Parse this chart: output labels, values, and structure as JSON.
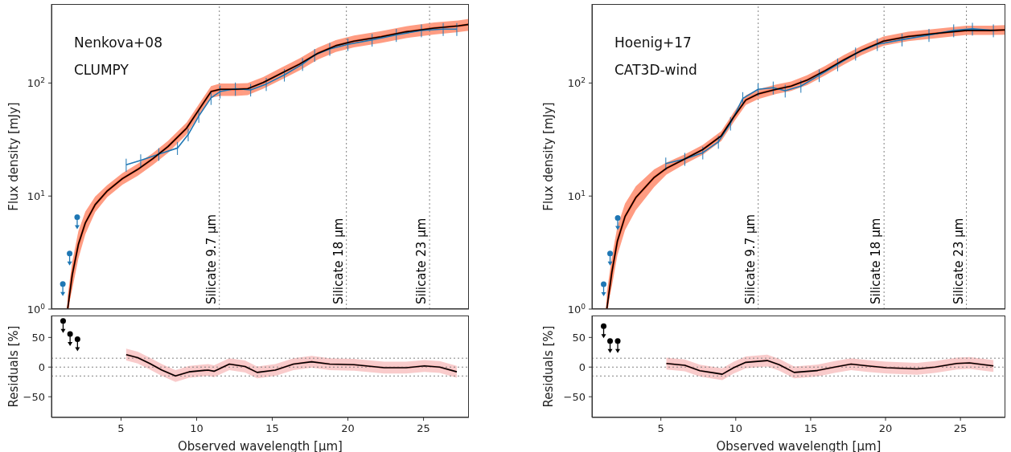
{
  "chart_data": [
    {
      "type": "line",
      "ylabel": "Flux density [mJy]",
      "annotations": [
        "Nenkova+08",
        "CLUMPY"
      ],
      "log": "y",
      "xlim": [
        0.4,
        28
      ],
      "xticks": [
        5,
        10,
        15,
        20,
        25
      ],
      "ylim": [
        1,
        500
      ],
      "yticks": [
        {
          "value": 1,
          "label": "10$^{0}$"
        },
        {
          "value": 10,
          "label": "10$^{1}$"
        },
        {
          "value": 100,
          "label": "10$^{2}$"
        }
      ],
      "tick_labels": "y",
      "ref_lines": [
        {
          "axis": "x",
          "value": 11.5,
          "label": "Silicate 9.7 µm",
          "color": "#808080",
          "line_style": "dotted"
        },
        {
          "axis": "x",
          "value": 19.9,
          "label": "Silicate 18 µm",
          "color": "#808080",
          "line_style": "dotted"
        },
        {
          "axis": "x",
          "value": 25.4,
          "label": "Silicate 23 µm",
          "color": "#808080",
          "line_style": "dotted"
        }
      ],
      "series": [
        {
          "color": "#ff4a1c",
          "x": [
            1.47,
            1.77,
            2.18,
            2.64,
            3.29,
            4.09,
            5.1,
            6.1,
            7.1,
            8.1,
            9.33,
            10.14,
            10.95,
            11.55,
            12.56,
            13.37,
            14.4,
            15.6,
            16.8,
            18.0,
            19.2,
            20.4,
            22.2,
            23.85,
            25.7,
            27.3,
            28.0
          ],
          "values": [
            1.0,
            2.0,
            3.74,
            5.8,
            8.4,
            11.1,
            14.3,
            17.2,
            21.4,
            27.4,
            39.8,
            57.8,
            84,
            88,
            88,
            89,
            101,
            122,
            147,
            183,
            214,
            235,
            257,
            284,
            306,
            320,
            330
          ],
          "lower": [
            1.0,
            1.5,
            2.8,
            4.6,
            7.2,
            9.8,
            12.6,
            15.1,
            18.8,
            24.1,
            35,
            51,
            74,
            77,
            77,
            78,
            89,
            107,
            129,
            161,
            188,
            207,
            226,
            250,
            269,
            282,
            290
          ],
          "upper": [
            1.3,
            2.6,
            4.9,
            7.3,
            9.9,
            12.5,
            16,
            19.3,
            24,
            30.7,
            44.6,
            64.7,
            94,
            99,
            99,
            100,
            113,
            137,
            165,
            205,
            240,
            263,
            288,
            318,
            343,
            358,
            370
          ]
        },
        {
          "color": "#1f77b4",
          "x": [
            5.34,
            6.3,
            7.5,
            8.73,
            9.44,
            10.14,
            10.95,
            11.55,
            12.56,
            13.57,
            14.6,
            15.8,
            17.0,
            17.8,
            18.8,
            20.0,
            21.6,
            23.2,
            24.86,
            26.3,
            27.2
          ],
          "values": [
            18.9,
            20.7,
            23.5,
            26.6,
            35,
            51,
            74,
            84,
            89,
            87,
            98,
            118,
            147,
            177,
            200,
            220,
            241,
            266,
            292,
            300,
            300
          ],
          "errors": [
            2.5,
            2.7,
            3,
            3.5,
            4.5,
            6.5,
            10,
            11,
            12,
            11,
            13,
            15,
            19,
            23,
            26,
            28,
            31,
            35,
            38,
            39,
            39
          ]
        },
        {
          "color": "#000000",
          "x": [
            1.47,
            1.77,
            2.18,
            2.64,
            3.29,
            4.09,
            5.1,
            6.1,
            7.1,
            8.1,
            9.33,
            10.14,
            10.95,
            11.55,
            12.56,
            13.37,
            14.4,
            15.6,
            16.8,
            18.0,
            19.2,
            20.4,
            22.2,
            23.85,
            25.7,
            27.3,
            28.0
          ],
          "values": [
            1.0,
            2.0,
            3.74,
            5.8,
            8.4,
            11.1,
            14.3,
            17.2,
            21.4,
            27.4,
            39.8,
            57.8,
            84,
            88,
            88,
            89,
            101,
            122,
            147,
            183,
            214,
            235,
            257,
            284,
            306,
            320,
            330
          ]
        },
        {
          "type": "scatter",
          "marker": "circle",
          "color": "#1f77b4",
          "x": [
            1.15,
            1.6,
            2.1
          ],
          "values": [
            1.67,
            3.1,
            6.5
          ]
        }
      ]
    },
    {
      "type": "line",
      "ylabel": "Flux density [mJy]",
      "annotations": [
        "Hoenig+17",
        "CAT3D-wind"
      ],
      "log": "y",
      "xlim": [
        0.4,
        28
      ],
      "xticks": [
        5,
        10,
        15,
        20,
        25
      ],
      "ylim": [
        1,
        500
      ],
      "yticks": [
        {
          "value": 1,
          "label": "10$^{0}$"
        },
        {
          "value": 10,
          "label": "10$^{1}$"
        },
        {
          "value": 100,
          "label": "10$^{2}$"
        }
      ],
      "tick_labels": "y",
      "ref_lines": [
        {
          "axis": "x",
          "value": 11.5,
          "label": "Silicate 9.7 µm",
          "color": "#808080",
          "line_style": "dotted"
        },
        {
          "axis": "x",
          "value": 19.9,
          "label": "Silicate 18 µm",
          "color": "#808080",
          "line_style": "dotted"
        },
        {
          "axis": "x",
          "value": 25.4,
          "label": "Silicate 23 µm",
          "color": "#808080",
          "line_style": "dotted"
        }
      ],
      "series": [
        {
          "color": "#ff4a1c",
          "x": [
            1.39,
            1.73,
            2.1,
            2.61,
            3.33,
            4.55,
            5.37,
            6.6,
            7.8,
            9.04,
            9.86,
            10.67,
            11.49,
            12.7,
            13.7,
            14.76,
            15.98,
            17.2,
            18.4,
            19.86,
            21.5,
            23.3,
            25.4,
            27.0,
            28.0
          ],
          "values": [
            1.0,
            2.13,
            4.0,
            6.6,
            9.7,
            14.6,
            17.6,
            21.3,
            25.8,
            34.2,
            50,
            70.7,
            80,
            88,
            94,
            106,
            129,
            160,
            194,
            235,
            258,
            274,
            292,
            292,
            295
          ],
          "lower": [
            1.0,
            1.6,
            3.0,
            5.0,
            7.5,
            12.0,
            15.5,
            19.2,
            23.2,
            30.8,
            45,
            64,
            72,
            80,
            85,
            96,
            117,
            145,
            176,
            214,
            235,
            249,
            266,
            266,
            268
          ],
          "upper": [
            1.4,
            2.9,
            5.4,
            8.6,
            12.2,
            17.2,
            19.8,
            23.4,
            28.4,
            37.6,
            55,
            77.7,
            88,
            97,
            103,
            117,
            142,
            176,
            213,
            258,
            284,
            301,
            321,
            321,
            325
          ]
        },
        {
          "color": "#1f77b4",
          "x": [
            5.33,
            6.6,
            7.8,
            8.84,
            9.65,
            10.47,
            11.49,
            12.5,
            13.3,
            14.35,
            15.57,
            16.8,
            18.0,
            19.45,
            21.1,
            22.9,
            24.55,
            25.8,
            27.2
          ],
          "values": [
            19.4,
            21.3,
            24.2,
            30.2,
            44,
            73,
            88,
            91,
            85.5,
            94,
            117,
            146,
            182,
            220,
            242,
            266,
            292,
            302,
            292
          ],
          "errors": [
            2.5,
            2.8,
            3.1,
            4,
            6,
            10,
            11,
            12,
            11,
            12,
            15,
            19,
            24,
            28,
            31,
            35,
            38,
            39,
            38
          ]
        },
        {
          "color": "#000000",
          "x": [
            1.39,
            1.73,
            2.1,
            2.61,
            3.33,
            4.55,
            5.37,
            6.6,
            7.8,
            9.04,
            9.86,
            10.67,
            11.49,
            12.7,
            13.7,
            14.76,
            15.98,
            17.2,
            18.4,
            19.86,
            21.5,
            23.3,
            25.4,
            27.0,
            28.0
          ],
          "values": [
            1.0,
            2.13,
            4.0,
            6.6,
            9.7,
            14.6,
            17.6,
            21.3,
            25.8,
            34.2,
            50,
            70.7,
            80,
            88,
            94,
            106,
            129,
            160,
            194,
            235,
            258,
            274,
            292,
            292,
            295
          ]
        },
        {
          "type": "scatter",
          "marker": "circle",
          "color": "#1f77b4",
          "x": [
            1.18,
            1.61,
            2.12
          ],
          "values": [
            1.66,
            3.1,
            6.4
          ]
        }
      ]
    },
    {
      "type": "line",
      "ylabel": "Residuals [%]",
      "xlabel": "Observed wavelength [µm]",
      "xlim": [
        0.4,
        28
      ],
      "xticks": [
        5,
        10,
        15,
        20,
        25
      ],
      "ylim": [
        -85,
        87
      ],
      "yticks": [
        {
          "value": -50,
          "label": "−50"
        },
        {
          "value": 0,
          "label": "0"
        },
        {
          "value": 50,
          "label": "50"
        }
      ],
      "ref_lines": [
        {
          "axis": "y",
          "value": 15,
          "color": "#808080",
          "line_style": "dotted"
        },
        {
          "axis": "y",
          "value": 0,
          "color": "#808080",
          "line_style": "dotted"
        },
        {
          "axis": "y",
          "value": -15,
          "color": "#808080",
          "line_style": "dotted"
        }
      ],
      "series": [
        {
          "color": "#f4a0a0",
          "x": [
            5.34,
            6.1,
            6.9,
            7.7,
            8.6,
            9.5,
            10.75,
            11.15,
            12.16,
            13.2,
            14.0,
            15.2,
            16.4,
            17.6,
            18.8,
            20.4,
            22.4,
            23.85,
            25.06,
            26.07,
            27.2
          ],
          "values": [
            21,
            16,
            6,
            -5,
            -15,
            -8,
            -5,
            -7,
            5,
            1,
            -9,
            -5,
            5,
            9,
            5,
            4,
            -1,
            -1,
            2,
            0,
            -8
          ],
          "lower": [
            11,
            6,
            -4,
            -15,
            -25,
            -18,
            -15,
            -17,
            -5,
            -9,
            -19,
            -15,
            -5,
            -1,
            -5,
            -6,
            -11,
            -11,
            -8,
            -10,
            -18
          ],
          "upper": [
            31,
            26,
            16,
            5,
            -5,
            2,
            5,
            3,
            15,
            11,
            1,
            5,
            15,
            19,
            15,
            14,
            9,
            9,
            12,
            10,
            2
          ]
        },
        {
          "color": "#000000",
          "x": [
            5.34,
            6.1,
            6.9,
            7.7,
            8.6,
            9.5,
            10.75,
            11.15,
            12.16,
            13.2,
            14.0,
            15.2,
            16.4,
            17.6,
            18.8,
            20.4,
            22.4,
            23.85,
            25.06,
            26.07,
            27.2
          ],
          "values": [
            21,
            16,
            6,
            -5,
            -15,
            -8,
            -5,
            -7,
            5,
            1,
            -9,
            -5,
            5,
            9,
            5,
            4,
            -1,
            -1,
            2,
            0,
            -8
          ]
        },
        {
          "type": "scatter",
          "marker": "circle",
          "color": "#000000",
          "x": [
            1.17,
            1.63,
            2.12
          ],
          "values": [
            78,
            56,
            47
          ]
        }
      ]
    },
    {
      "type": "line",
      "ylabel": "Residuals [%]",
      "xlabel": "Observed wavelength [µm]",
      "xlim": [
        0.4,
        28
      ],
      "xticks": [
        5,
        10,
        15,
        20,
        25
      ],
      "ylim": [
        -85,
        87
      ],
      "yticks": [
        {
          "value": -50,
          "label": "−50"
        },
        {
          "value": 0,
          "label": "0"
        },
        {
          "value": 50,
          "label": "50"
        }
      ],
      "ref_lines": [
        {
          "axis": "y",
          "value": 15,
          "color": "#808080",
          "line_style": "dotted"
        },
        {
          "axis": "y",
          "value": 0,
          "color": "#808080",
          "line_style": "dotted"
        },
        {
          "axis": "y",
          "value": -15,
          "color": "#808080",
          "line_style": "dotted"
        }
      ],
      "series": [
        {
          "color": "#f4a0a0",
          "x": [
            5.37,
            6.6,
            7.6,
            8.6,
            9.1,
            9.86,
            10.67,
            12.1,
            12.9,
            13.9,
            15.4,
            16.6,
            17.7,
            18.8,
            20.06,
            22.1,
            23.3,
            24.75,
            25.6,
            27.2
          ],
          "values": [
            6,
            3,
            -6,
            -10,
            -12,
            -1,
            8,
            11,
            4,
            -9,
            -6,
            0,
            5,
            2,
            -1,
            -3,
            0,
            6,
            7,
            2
          ],
          "lower": [
            -4,
            -7,
            -16,
            -20,
            -22,
            -11,
            -2,
            1,
            -6,
            -19,
            -16,
            -10,
            -5,
            -8,
            -11,
            -13,
            -10,
            -4,
            -3,
            -8
          ],
          "upper": [
            16,
            13,
            4,
            0,
            -2,
            9,
            18,
            21,
            14,
            1,
            4,
            10,
            15,
            12,
            9,
            7,
            10,
            16,
            17,
            12
          ]
        },
        {
          "color": "#000000",
          "x": [
            5.37,
            6.6,
            7.6,
            8.6,
            9.1,
            9.86,
            10.67,
            12.1,
            12.9,
            13.9,
            15.4,
            16.6,
            17.7,
            18.8,
            20.06,
            22.1,
            23.3,
            24.75,
            25.6,
            27.2
          ],
          "values": [
            6,
            3,
            -6,
            -10,
            -12,
            -1,
            8,
            11,
            4,
            -9,
            -6,
            0,
            5,
            2,
            -1,
            -3,
            0,
            6,
            7,
            2
          ]
        },
        {
          "type": "scatter",
          "marker": "circle",
          "color": "#000000",
          "x": [
            1.18,
            1.61,
            2.12
          ],
          "values": [
            69,
            44,
            44
          ]
        }
      ]
    }
  ]
}
